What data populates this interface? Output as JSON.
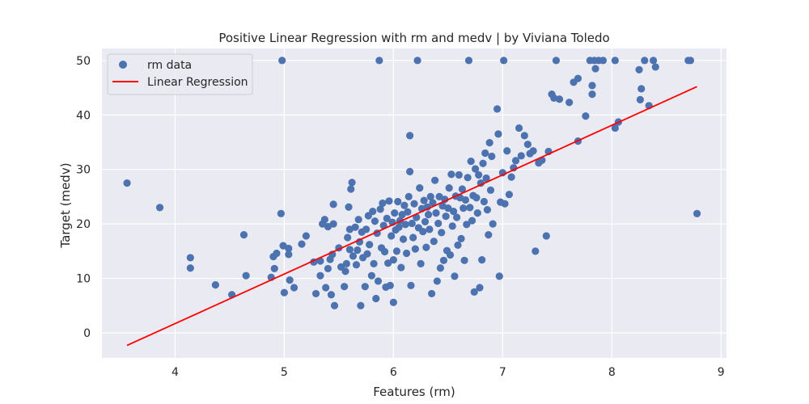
{
  "chart_data": {
    "type": "scatter",
    "title": "Positive Linear Regression with rm and medv | by Viviana Toledo",
    "xlabel": "Features (rm)",
    "ylabel": "Target (medv)",
    "xlim": [
      3.33,
      9.05
    ],
    "ylim": [
      -4.6,
      52.2
    ],
    "xticks": [
      4,
      5,
      6,
      7,
      8,
      9
    ],
    "yticks": [
      0,
      10,
      20,
      30,
      40,
      50
    ],
    "grid": true,
    "legend": "top-left",
    "colors": {
      "scatter": "#4c72b0",
      "line": "#ff0000",
      "background": "#eaeaf2",
      "grid": "#ffffff"
    },
    "series": [
      {
        "name": "rm data",
        "kind": "scatter",
        "points": [
          [
            3.56,
            27.5
          ],
          [
            3.86,
            23.0
          ],
          [
            4.14,
            13.8
          ],
          [
            4.14,
            11.9
          ],
          [
            4.37,
            8.8
          ],
          [
            4.52,
            7.0
          ],
          [
            4.63,
            18.0
          ],
          [
            4.65,
            10.5
          ],
          [
            4.88,
            10.2
          ],
          [
            4.91,
            11.8
          ],
          [
            4.9,
            14.0
          ],
          [
            4.93,
            14.6
          ],
          [
            4.97,
            21.9
          ],
          [
            4.98,
            50.0
          ],
          [
            4.99,
            16.0
          ],
          [
            5.0,
            7.4
          ],
          [
            5.04,
            15.5
          ],
          [
            5.04,
            14.4
          ],
          [
            5.05,
            9.7
          ],
          [
            5.09,
            8.3
          ],
          [
            5.16,
            16.3
          ],
          [
            5.2,
            17.8
          ],
          [
            5.27,
            13.0
          ],
          [
            5.29,
            7.2
          ],
          [
            5.33,
            10.5
          ],
          [
            5.33,
            13.2
          ],
          [
            5.35,
            20.0
          ],
          [
            5.37,
            20.8
          ],
          [
            5.38,
            8.3
          ],
          [
            5.4,
            11.8
          ],
          [
            5.4,
            19.5
          ],
          [
            5.42,
            13.5
          ],
          [
            5.43,
            7.0
          ],
          [
            5.44,
            14.4
          ],
          [
            5.45,
            23.6
          ],
          [
            5.45,
            20.0
          ],
          [
            5.46,
            5.0
          ],
          [
            5.5,
            15.6
          ],
          [
            5.52,
            12.1
          ],
          [
            5.55,
            8.5
          ],
          [
            5.56,
            11.3
          ],
          [
            5.57,
            12.7
          ],
          [
            5.58,
            17.5
          ],
          [
            5.59,
            23.1
          ],
          [
            5.6,
            19.0
          ],
          [
            5.6,
            15.3
          ],
          [
            5.61,
            26.4
          ],
          [
            5.62,
            27.6
          ],
          [
            5.63,
            14.1
          ],
          [
            5.65,
            19.4
          ],
          [
            5.66,
            12.5
          ],
          [
            5.67,
            15.2
          ],
          [
            5.68,
            20.8
          ],
          [
            5.69,
            16.7
          ],
          [
            5.7,
            5.0
          ],
          [
            5.71,
            18.5
          ],
          [
            5.72,
            13.8
          ],
          [
            5.74,
            8.5
          ],
          [
            5.75,
            19.0
          ],
          [
            5.76,
            14.5
          ],
          [
            5.77,
            21.5
          ],
          [
            5.78,
            16.2
          ],
          [
            5.8,
            10.5
          ],
          [
            5.81,
            22.3
          ],
          [
            5.82,
            12.7
          ],
          [
            5.83,
            20.5
          ],
          [
            5.84,
            6.3
          ],
          [
            5.85,
            18.3
          ],
          [
            5.86,
            9.5
          ],
          [
            5.87,
            50.0
          ],
          [
            5.88,
            22.7
          ],
          [
            5.89,
            15.6
          ],
          [
            5.9,
            23.8
          ],
          [
            5.91,
            19.7
          ],
          [
            5.92,
            14.9
          ],
          [
            5.93,
            8.4
          ],
          [
            5.94,
            21.0
          ],
          [
            5.95,
            12.8
          ],
          [
            5.96,
            24.2
          ],
          [
            5.97,
            8.7
          ],
          [
            5.98,
            17.8
          ],
          [
            5.99,
            20.3
          ],
          [
            6.0,
            13.4
          ],
          [
            6.0,
            5.6
          ],
          [
            6.01,
            22.0
          ],
          [
            6.02,
            18.9
          ],
          [
            6.03,
            15.0
          ],
          [
            6.04,
            24.1
          ],
          [
            6.05,
            19.4
          ],
          [
            6.06,
            20.6
          ],
          [
            6.07,
            12.0
          ],
          [
            6.08,
            21.7
          ],
          [
            6.09,
            17.2
          ],
          [
            6.1,
            23.4
          ],
          [
            6.11,
            19.9
          ],
          [
            6.12,
            14.6
          ],
          [
            6.13,
            22.2
          ],
          [
            6.14,
            25.0
          ],
          [
            6.15,
            36.2
          ],
          [
            6.15,
            29.6
          ],
          [
            6.16,
            8.7
          ],
          [
            6.17,
            20.1
          ],
          [
            6.18,
            17.5
          ],
          [
            6.19,
            23.7
          ],
          [
            6.2,
            15.4
          ],
          [
            6.21,
            21.2
          ],
          [
            6.22,
            50.0
          ],
          [
            6.23,
            19.3
          ],
          [
            6.24,
            26.6
          ],
          [
            6.25,
            12.7
          ],
          [
            6.26,
            22.8
          ],
          [
            6.27,
            18.6
          ],
          [
            6.28,
            24.3
          ],
          [
            6.29,
            20.4
          ],
          [
            6.3,
            15.7
          ],
          [
            6.31,
            23.1
          ],
          [
            6.32,
            21.7
          ],
          [
            6.33,
            19.0
          ],
          [
            6.34,
            25.0
          ],
          [
            6.35,
            7.2
          ],
          [
            6.36,
            23.9
          ],
          [
            6.37,
            16.8
          ],
          [
            6.38,
            28.0
          ],
          [
            6.39,
            22.0
          ],
          [
            6.4,
            9.5
          ],
          [
            6.41,
            20.1
          ],
          [
            6.42,
            25.0
          ],
          [
            6.43,
            11.9
          ],
          [
            6.44,
            18.4
          ],
          [
            6.45,
            23.3
          ],
          [
            6.46,
            13.3
          ],
          [
            6.47,
            24.5
          ],
          [
            6.48,
            21.4
          ],
          [
            6.49,
            15.1
          ],
          [
            6.5,
            22.9
          ],
          [
            6.51,
            26.6
          ],
          [
            6.52,
            14.3
          ],
          [
            6.53,
            29.1
          ],
          [
            6.54,
            19.6
          ],
          [
            6.55,
            22.3
          ],
          [
            6.56,
            10.4
          ],
          [
            6.57,
            25.1
          ],
          [
            6.58,
            21.2
          ],
          [
            6.59,
            16.1
          ],
          [
            6.6,
            29.0
          ],
          [
            6.61,
            24.8
          ],
          [
            6.62,
            17.3
          ],
          [
            6.63,
            26.4
          ],
          [
            6.64,
            22.9
          ],
          [
            6.65,
            13.3
          ],
          [
            6.66,
            24.4
          ],
          [
            6.67,
            19.9
          ],
          [
            6.68,
            28.5
          ],
          [
            6.69,
            50.0
          ],
          [
            6.7,
            23.0
          ],
          [
            6.71,
            31.5
          ],
          [
            6.72,
            20.6
          ],
          [
            6.73,
            25.2
          ],
          [
            6.74,
            7.5
          ],
          [
            6.75,
            30.1
          ],
          [
            6.76,
            24.8
          ],
          [
            6.77,
            22.0
          ],
          [
            6.78,
            29.0
          ],
          [
            6.79,
            8.3
          ],
          [
            6.8,
            27.5
          ],
          [
            6.81,
            13.4
          ],
          [
            6.82,
            31.1
          ],
          [
            6.83,
            24.1
          ],
          [
            6.84,
            33.0
          ],
          [
            6.85,
            28.4
          ],
          [
            6.86,
            22.6
          ],
          [
            6.87,
            18.0
          ],
          [
            6.88,
            34.9
          ],
          [
            6.89,
            26.2
          ],
          [
            6.9,
            32.4
          ],
          [
            6.91,
            20.0
          ],
          [
            6.95,
            41.1
          ],
          [
            6.96,
            36.5
          ],
          [
            6.97,
            10.4
          ],
          [
            6.98,
            24.0
          ],
          [
            7.0,
            29.4
          ],
          [
            7.01,
            50.0
          ],
          [
            7.02,
            23.7
          ],
          [
            7.04,
            33.4
          ],
          [
            7.06,
            25.4
          ],
          [
            7.08,
            28.6
          ],
          [
            7.1,
            30.3
          ],
          [
            7.12,
            31.6
          ],
          [
            7.15,
            37.6
          ],
          [
            7.17,
            32.5
          ],
          [
            7.2,
            36.2
          ],
          [
            7.23,
            34.6
          ],
          [
            7.25,
            32.9
          ],
          [
            7.28,
            33.4
          ],
          [
            7.3,
            15.0
          ],
          [
            7.33,
            31.2
          ],
          [
            7.36,
            31.7
          ],
          [
            7.4,
            17.8
          ],
          [
            7.42,
            33.3
          ],
          [
            7.45,
            43.8
          ],
          [
            7.47,
            43.1
          ],
          [
            7.49,
            50.0
          ],
          [
            7.52,
            42.9
          ],
          [
            7.61,
            42.3
          ],
          [
            7.65,
            46.0
          ],
          [
            7.69,
            46.7
          ],
          [
            7.69,
            35.2
          ],
          [
            7.76,
            39.8
          ],
          [
            7.8,
            50.0
          ],
          [
            7.82,
            45.4
          ],
          [
            7.82,
            43.8
          ],
          [
            7.84,
            50.0
          ],
          [
            7.85,
            48.5
          ],
          [
            7.88,
            50.0
          ],
          [
            7.92,
            50.0
          ],
          [
            8.03,
            50.0
          ],
          [
            8.03,
            37.6
          ],
          [
            8.06,
            38.7
          ],
          [
            8.25,
            48.3
          ],
          [
            8.26,
            42.8
          ],
          [
            8.27,
            44.8
          ],
          [
            8.3,
            50.0
          ],
          [
            8.34,
            41.7
          ],
          [
            8.38,
            50.0
          ],
          [
            8.4,
            48.8
          ],
          [
            8.7,
            50.0
          ],
          [
            8.72,
            50.0
          ],
          [
            8.78,
            21.9
          ]
        ]
      },
      {
        "name": "Linear Regression",
        "kind": "line",
        "points": [
          [
            3.56,
            -2.3
          ],
          [
            8.78,
            45.2
          ]
        ]
      }
    ]
  }
}
